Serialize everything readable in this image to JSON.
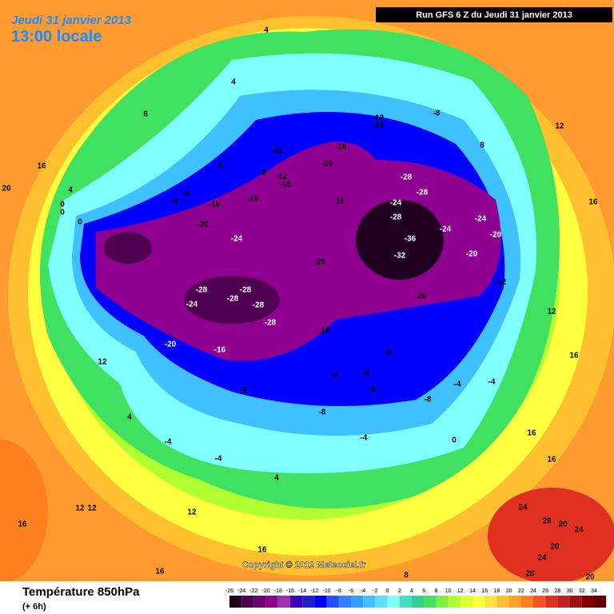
{
  "header": {
    "date": "Jeudi 31 janvier 2013",
    "time": "13:00 locale",
    "run": "Run GFS 6 Z du Jeudi 31 janvier 2013"
  },
  "copyright": "Copyright © 2012 Meteociel.fr",
  "footer": {
    "title": "Température 850hPa",
    "lead": "(+ 6h)"
  },
  "colorbar": {
    "ticks": [
      -26,
      -24,
      -22,
      -20,
      -18,
      -16,
      -14,
      -12,
      -10,
      -8,
      -6,
      -4,
      -2,
      0,
      2,
      4,
      6,
      8,
      10,
      12,
      14,
      16,
      18,
      20,
      22,
      24,
      26,
      28,
      30,
      32,
      34
    ],
    "colors": [
      "#200020",
      "#500050",
      "#700070",
      "#900090",
      "#a030b0",
      "#4000c0",
      "#2020d0",
      "#0000ff",
      "#2050ff",
      "#3080ff",
      "#30a0ff",
      "#40c0ff",
      "#60e0ff",
      "#80ffff",
      "#40e0c0",
      "#30d090",
      "#40e060",
      "#80f040",
      "#b0ff30",
      "#e0ff30",
      "#ffff40",
      "#ffe040",
      "#ffc030",
      "#ffa020",
      "#ff8020",
      "#ff5020",
      "#e03020",
      "#c02020",
      "#a01010",
      "#800000",
      "#600000"
    ]
  },
  "contour_labels": [
    "4",
    "4",
    "8",
    "16",
    "20",
    "0",
    "4",
    "0",
    "0",
    "0",
    "-4",
    "-8",
    "-16",
    "-12",
    "-8",
    "-12",
    "-16",
    "-16",
    "-20",
    "-24",
    "-28",
    "-28",
    "-24",
    "-28",
    "-28",
    "-28",
    "-20",
    "-16",
    "-12",
    "-12",
    "-8",
    "-16",
    "-20",
    "-16",
    "-28",
    "-28",
    "-24",
    "-28",
    "-24",
    "-24",
    "-36",
    "-20",
    "-32",
    "-20",
    "-12",
    "-20",
    "-20",
    "-16",
    "-8",
    "-8",
    "-8",
    "-8",
    "-8",
    "-4",
    "-8",
    "-4",
    "-4",
    "-4",
    "0",
    "-4",
    "-4",
    "4",
    "4",
    "12",
    "12",
    "12",
    "12",
    "16",
    "16",
    "16",
    "8",
    "12",
    "16",
    "24",
    "28",
    "20",
    "24",
    "20",
    "24",
    "28",
    "20",
    "8",
    "12",
    "16",
    "16",
    "16"
  ]
}
